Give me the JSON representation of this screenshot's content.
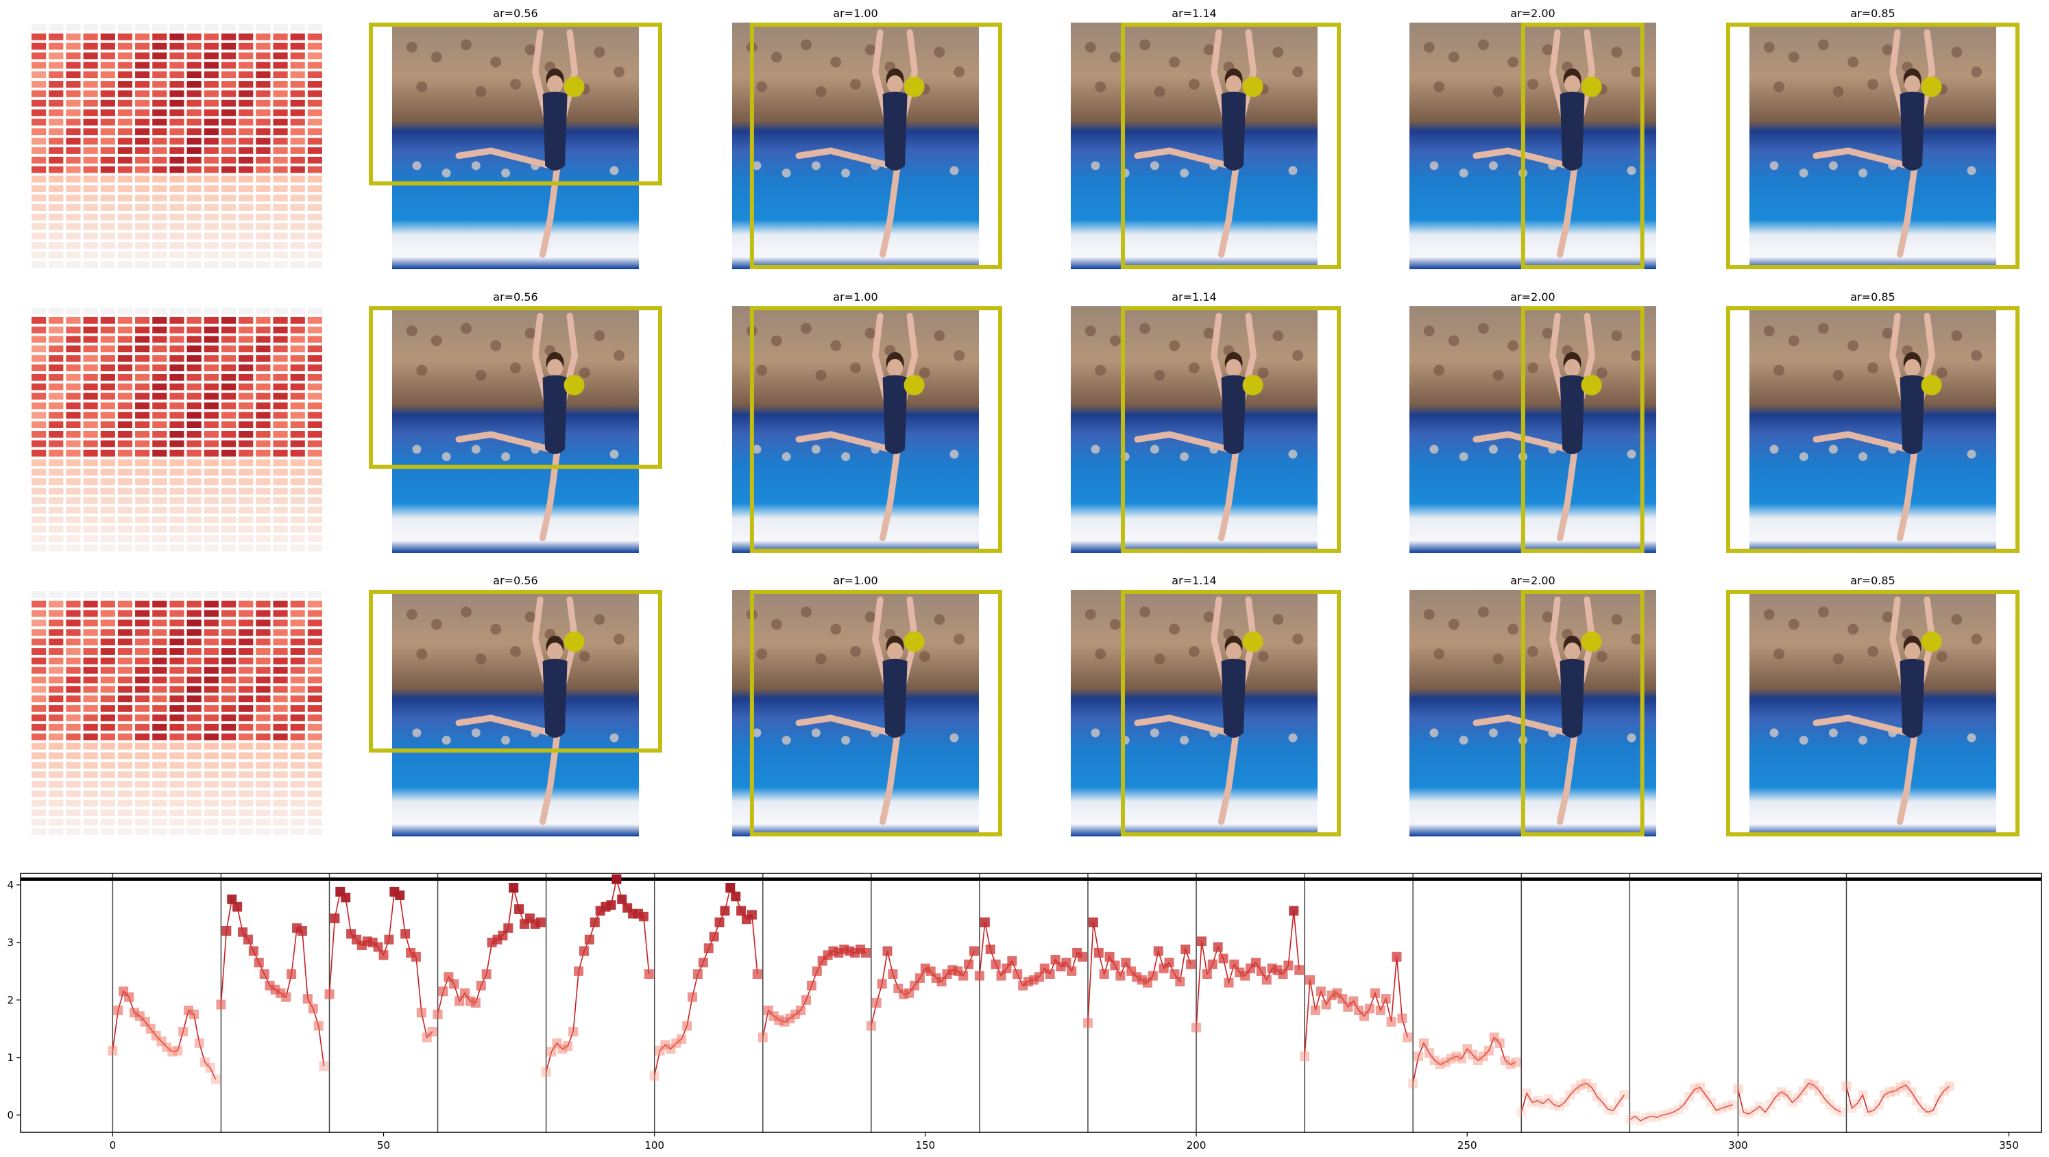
{
  "colors": {
    "box": "#c2bd12",
    "keypoint": "#c9c10a",
    "line": "#cc1e20",
    "frame": "#000000",
    "threshold": "#000000"
  },
  "grid": {
    "rows": [
      {
        "heatmap": {
          "cols": 17,
          "rows": 26,
          "palette": "Reds",
          "region": "upper rows strong, bottom rows pale"
        },
        "panels": [
          {
            "title": "ar=0.56"
          },
          {
            "title": "ar=1.00"
          },
          {
            "title": "ar=1.14"
          },
          {
            "title": "ar=2.00"
          },
          {
            "title": "ar=0.85"
          }
        ]
      },
      {
        "heatmap": {
          "cols": 17,
          "rows": 26,
          "palette": "Reds",
          "region": "upper rows strong, bottom rows pale"
        },
        "panels": [
          {
            "title": "ar=0.56"
          },
          {
            "title": "ar=1.00"
          },
          {
            "title": "ar=1.14"
          },
          {
            "title": "ar=2.00"
          },
          {
            "title": "ar=0.85"
          }
        ]
      },
      {
        "heatmap": {
          "cols": 17,
          "rows": 26,
          "palette": "Reds",
          "region": "upper rows strong, bottom rows pale"
        },
        "panels": [
          {
            "title": "ar=0.56"
          },
          {
            "title": "ar=1.00"
          },
          {
            "title": "ar=1.14"
          },
          {
            "title": "ar=2.00"
          },
          {
            "title": "ar=0.85"
          }
        ]
      }
    ],
    "image_content": "gymnast on balance beam, arms raised overhead, leg extended forward, crowd in background"
  },
  "chart_data": {
    "type": "line",
    "title": "",
    "xlabel": "",
    "ylabel": "",
    "xlim": [
      -17,
      356
    ],
    "ylim": [
      -0.3,
      4.2
    ],
    "xticks": [
      0,
      50,
      100,
      150,
      200,
      250,
      300,
      350
    ],
    "yticks": [
      0,
      1,
      2,
      3,
      4
    ],
    "threshold": 4.1,
    "vlines": [
      0,
      20,
      40,
      60,
      80,
      100,
      120,
      140,
      160,
      180,
      200,
      220,
      240,
      260,
      280,
      300,
      320
    ],
    "marker": "square",
    "series": [
      {
        "x0": 0,
        "values": [
          1.12,
          1.82,
          2.15,
          2.05,
          1.78,
          1.72,
          1.62,
          1.5,
          1.38,
          1.28,
          1.18,
          1.1,
          1.12,
          1.45,
          1.82,
          1.75,
          1.25,
          0.92,
          0.82,
          0.62
        ]
      },
      {
        "x0": 20,
        "values": [
          1.92,
          3.2,
          3.75,
          3.62,
          3.18,
          3.05,
          2.85,
          2.65,
          2.45,
          2.25,
          2.18,
          2.12,
          2.05,
          2.45,
          3.25,
          3.2,
          2.02,
          1.85,
          1.55,
          0.85
        ]
      },
      {
        "x0": 40,
        "values": [
          2.1,
          3.42,
          3.88,
          3.78,
          3.15,
          3.05,
          2.95,
          3.02,
          3.0,
          2.92,
          2.78,
          3.05,
          3.88,
          3.82,
          3.15,
          2.82,
          2.75,
          1.78,
          1.35,
          1.45
        ]
      },
      {
        "x0": 60,
        "values": [
          1.75,
          2.15,
          2.4,
          2.28,
          1.98,
          2.12,
          1.98,
          1.95,
          2.25,
          2.45,
          3.0,
          3.05,
          3.12,
          3.25,
          3.95,
          3.58,
          3.32,
          3.42,
          3.32,
          3.35
        ]
      },
      {
        "x0": 80,
        "values": [
          0.75,
          1.1,
          1.25,
          1.15,
          1.2,
          1.45,
          2.5,
          2.85,
          3.05,
          3.35,
          3.55,
          3.62,
          3.65,
          4.1,
          3.75,
          3.6,
          3.5,
          3.5,
          3.45,
          2.45
        ]
      },
      {
        "x0": 100,
        "values": [
          0.68,
          1.12,
          1.22,
          1.15,
          1.25,
          1.32,
          1.55,
          2.05,
          2.45,
          2.65,
          2.9,
          3.1,
          3.35,
          3.55,
          3.95,
          3.8,
          3.55,
          3.4,
          3.48,
          2.45
        ]
      },
      {
        "x0": 120,
        "values": [
          1.35,
          1.82,
          1.72,
          1.65,
          1.62,
          1.68,
          1.75,
          1.82,
          2.0,
          2.25,
          2.5,
          2.68,
          2.78,
          2.85,
          2.82,
          2.88,
          2.85,
          2.82,
          2.88,
          2.82
        ]
      },
      {
        "x0": 140,
        "values": [
          1.55,
          1.95,
          2.28,
          2.85,
          2.45,
          2.2,
          2.1,
          2.12,
          2.25,
          2.38,
          2.55,
          2.5,
          2.38,
          2.32,
          2.45,
          2.52,
          2.5,
          2.42,
          2.62,
          2.85
        ]
      },
      {
        "x0": 160,
        "values": [
          2.42,
          3.35,
          2.88,
          2.62,
          2.42,
          2.55,
          2.68,
          2.45,
          2.25,
          2.32,
          2.35,
          2.4,
          2.55,
          2.45,
          2.7,
          2.58,
          2.65,
          2.5,
          2.82,
          2.75
        ]
      },
      {
        "x0": 180,
        "values": [
          1.6,
          3.35,
          2.82,
          2.45,
          2.75,
          2.6,
          2.42,
          2.65,
          2.5,
          2.4,
          2.35,
          2.3,
          2.42,
          2.85,
          2.55,
          2.65,
          2.45,
          2.32,
          2.88,
          2.62
        ]
      },
      {
        "x0": 200,
        "values": [
          1.52,
          3.02,
          2.45,
          2.62,
          2.92,
          2.72,
          2.3,
          2.62,
          2.48,
          2.42,
          2.55,
          2.65,
          2.5,
          2.35,
          2.55,
          2.52,
          2.45,
          2.6,
          3.55,
          2.52
        ]
      },
      {
        "x0": 220,
        "values": [
          1.02,
          2.35,
          1.82,
          2.15,
          1.92,
          2.08,
          2.12,
          2.02,
          1.88,
          1.98,
          1.82,
          1.72,
          1.85,
          2.12,
          1.82,
          2.02,
          1.62,
          2.75,
          1.68,
          1.35
        ]
      },
      {
        "x0": 240,
        "values": [
          0.55,
          1.02,
          1.25,
          1.08,
          0.95,
          0.88,
          0.92,
          0.98,
          1.02,
          0.98,
          1.15,
          1.05,
          0.95,
          1.02,
          1.12,
          1.35,
          1.25,
          0.95,
          0.88,
          0.92
        ]
      },
      {
        "x0": 260,
        "values": [
          0.05,
          0.38,
          0.22,
          0.25,
          0.2,
          0.28,
          0.18,
          0.15,
          0.22,
          0.35,
          0.45,
          0.52,
          0.55,
          0.48,
          0.32,
          0.22,
          0.1,
          0.08,
          0.22,
          0.35
        ]
      },
      {
        "x0": 280,
        "values": [
          -0.08,
          -0.02,
          -0.1,
          -0.05,
          -0.02,
          -0.04,
          0.0,
          0.02,
          0.05,
          0.1,
          0.18,
          0.32,
          0.45,
          0.48,
          0.35,
          0.22,
          0.08,
          0.12,
          0.15,
          0.18
        ]
      },
      {
        "x0": 300,
        "values": [
          0.45,
          0.05,
          0.02,
          0.08,
          0.15,
          0.05,
          0.18,
          0.32,
          0.4,
          0.35,
          0.22,
          0.3,
          0.42,
          0.55,
          0.52,
          0.42,
          0.28,
          0.18,
          0.1,
          0.05
        ]
      },
      {
        "x0": 320,
        "values": [
          0.5,
          0.12,
          0.2,
          0.35,
          0.05,
          0.08,
          0.18,
          0.35,
          0.4,
          0.42,
          0.48,
          0.52,
          0.4,
          0.25,
          0.12,
          0.05,
          0.08,
          0.28,
          0.42,
          0.5
        ]
      }
    ]
  }
}
